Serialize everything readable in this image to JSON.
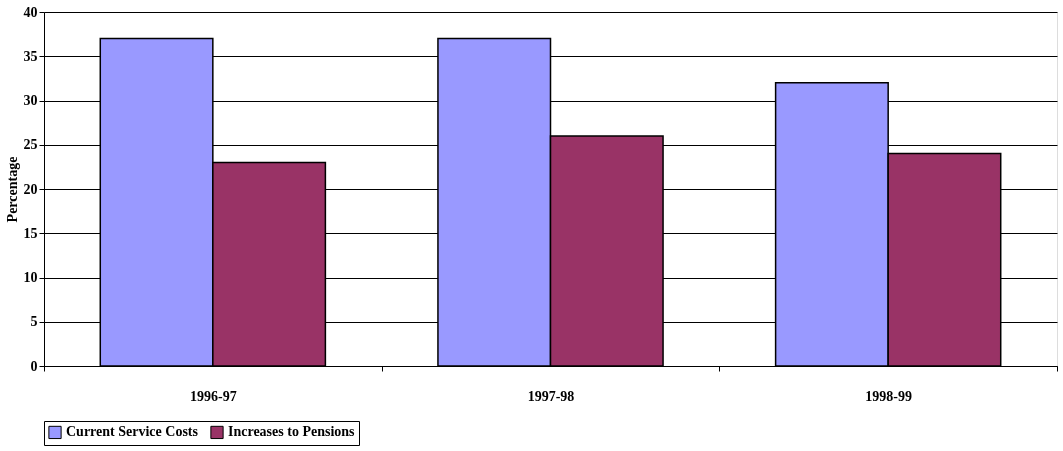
{
  "chart_data": {
    "type": "bar",
    "ylabel": "Percentage",
    "categories": [
      "1996-97",
      "1997-98",
      "1998-99"
    ],
    "series": [
      {
        "name": "Current Service Costs",
        "color": "#9999ff",
        "values": [
          37,
          37,
          32
        ]
      },
      {
        "name": "Increases to Pensions",
        "color": "#993366",
        "values": [
          23,
          26,
          24
        ]
      }
    ],
    "ylim": [
      0,
      40
    ],
    "yticks": [
      0,
      5,
      10,
      15,
      20,
      25,
      30,
      35,
      40
    ],
    "grid": "y",
    "legend": "bottom"
  }
}
